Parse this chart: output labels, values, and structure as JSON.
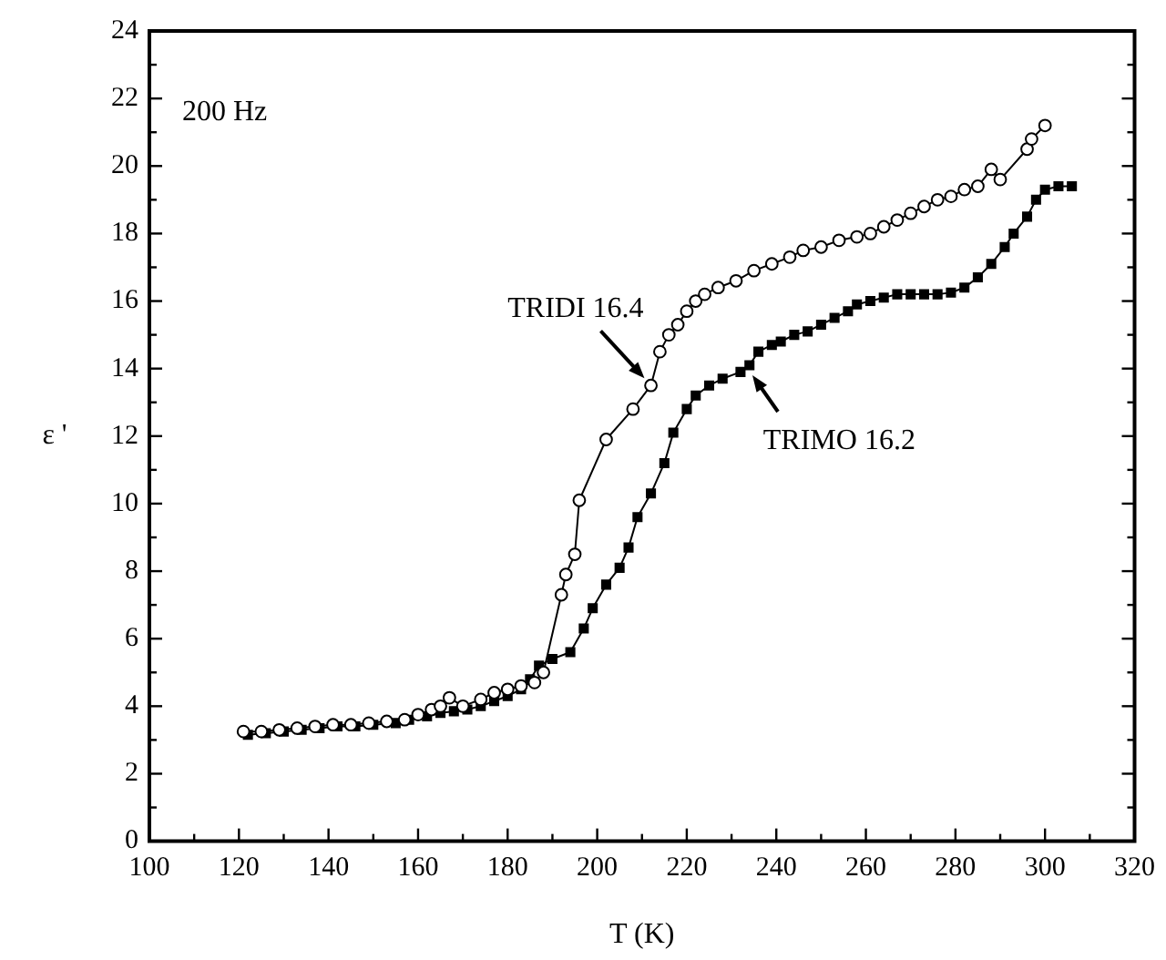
{
  "chart_data": {
    "type": "line",
    "xlabel": "T (K)",
    "ylabel": "ε '",
    "annotations": [
      "200 Hz",
      {
        "text": "TRIDI 16.4",
        "x": 212,
        "y": 13.5
      },
      {
        "text": "TRIMO 16.2",
        "x": 233,
        "y": 14.0
      }
    ],
    "xlim": [
      100,
      320
    ],
    "xticks": [
      100,
      120,
      140,
      160,
      180,
      200,
      220,
      240,
      260,
      280,
      300,
      320
    ],
    "ylim": [
      0,
      24
    ],
    "yticks": [
      0,
      2,
      4,
      6,
      8,
      10,
      12,
      14,
      16,
      18,
      20,
      22,
      24
    ],
    "grid": false,
    "legend": false,
    "series": [
      {
        "color": "#000000",
        "marker": "circle",
        "x": [
          121,
          125,
          129,
          133,
          137,
          141,
          145,
          149,
          153,
          157,
          160,
          163,
          165,
          167,
          170,
          174,
          177,
          180,
          183,
          186,
          188,
          192,
          193,
          195,
          196,
          202,
          208,
          212,
          214,
          216,
          218,
          220,
          222,
          224,
          227,
          231,
          235,
          239,
          243,
          246,
          250,
          254,
          258,
          261,
          264,
          267,
          270,
          273,
          276,
          279,
          282,
          285,
          288,
          290,
          296,
          297,
          300
        ],
        "values": [
          3.25,
          3.25,
          3.3,
          3.35,
          3.4,
          3.45,
          3.45,
          3.5,
          3.55,
          3.6,
          3.75,
          3.9,
          4.0,
          4.25,
          4.0,
          4.2,
          4.4,
          4.5,
          4.6,
          4.7,
          5.0,
          7.3,
          7.9,
          8.5,
          10.1,
          11.9,
          12.8,
          13.5,
          14.5,
          15.0,
          15.3,
          15.7,
          16.0,
          16.2,
          16.4,
          16.6,
          16.9,
          17.1,
          17.3,
          17.5,
          17.6,
          17.8,
          17.9,
          18.0,
          18.2,
          18.4,
          18.6,
          18.8,
          19.0,
          19.1,
          19.3,
          19.4,
          19.9,
          19.6,
          20.5,
          20.8,
          21.2
        ]
      },
      {
        "color": "#000000",
        "marker": "square",
        "x": [
          122,
          126,
          130,
          134,
          138,
          142,
          146,
          150,
          155,
          158,
          162,
          165,
          168,
          171,
          174,
          177,
          180,
          183,
          185,
          187,
          190,
          194,
          197,
          199,
          202,
          205,
          207,
          209,
          212,
          215,
          217,
          220,
          222,
          225,
          228,
          232,
          234,
          236,
          239,
          241,
          244,
          247,
          250,
          253,
          256,
          258,
          261,
          264,
          267,
          270,
          273,
          276,
          279,
          282,
          285,
          288,
          291,
          293,
          296,
          298,
          300,
          303,
          306
        ],
        "values": [
          3.15,
          3.2,
          3.25,
          3.3,
          3.35,
          3.4,
          3.4,
          3.45,
          3.5,
          3.6,
          3.7,
          3.8,
          3.85,
          3.9,
          4.0,
          4.15,
          4.3,
          4.5,
          4.8,
          5.2,
          5.4,
          5.6,
          6.3,
          6.9,
          7.6,
          8.1,
          8.7,
          9.6,
          10.3,
          11.2,
          12.1,
          12.8,
          13.2,
          13.5,
          13.7,
          13.9,
          14.1,
          14.5,
          14.7,
          14.8,
          15.0,
          15.1,
          15.3,
          15.5,
          15.7,
          15.9,
          16.0,
          16.1,
          16.2,
          16.2,
          16.2,
          16.2,
          16.25,
          16.4,
          16.7,
          17.1,
          17.6,
          18.0,
          18.5,
          19.0,
          19.3,
          19.4,
          19.4
        ]
      }
    ]
  }
}
